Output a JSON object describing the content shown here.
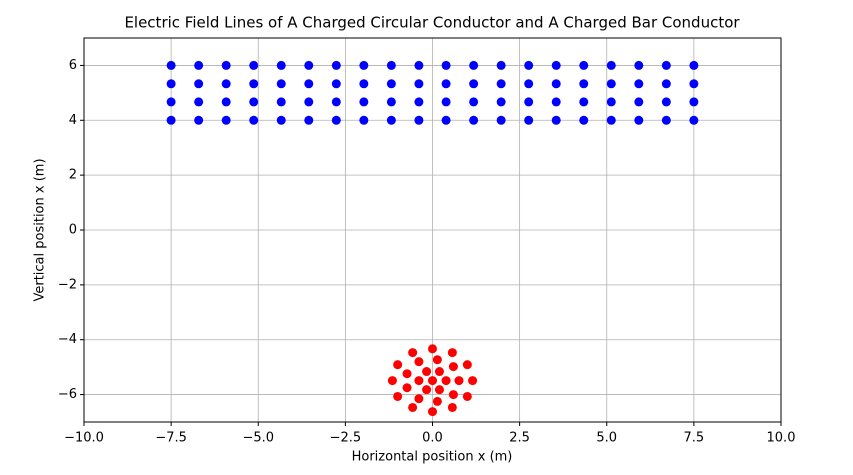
{
  "chart_data": {
    "type": "scatter",
    "title": "Electric Field Lines of A Charged Circular Conductor and A Charged Bar Conductor",
    "xlabel": "Horizontal position x (m)",
    "ylabel": "Vertical position x (m)",
    "xlim": [
      -10,
      10
    ],
    "ylim": [
      -7,
      7
    ],
    "xticks": [
      {
        "value": -10,
        "label": "−10.0"
      },
      {
        "value": -7.5,
        "label": "−7.5"
      },
      {
        "value": -5,
        "label": "−5.0"
      },
      {
        "value": -2.5,
        "label": "−2.5"
      },
      {
        "value": 0,
        "label": "0.0"
      },
      {
        "value": 2.5,
        "label": "2.5"
      },
      {
        "value": 5,
        "label": "5.0"
      },
      {
        "value": 7.5,
        "label": "7.5"
      },
      {
        "value": 10,
        "label": "10.0"
      }
    ],
    "yticks": [
      {
        "value": -6,
        "label": "−6"
      },
      {
        "value": -4,
        "label": "−4"
      },
      {
        "value": -2,
        "label": "−2"
      },
      0,
      2,
      4,
      6
    ],
    "grid": true,
    "series": [
      {
        "color": "#0000ff",
        "x": [
          -7.5,
          -6.71,
          -5.92,
          -5.13,
          -4.34,
          -3.55,
          -2.76,
          -1.97,
          -1.18,
          -0.39,
          0.39,
          1.18,
          1.97,
          2.76,
          3.55,
          4.34,
          5.13,
          5.92,
          6.71,
          7.5,
          -7.5,
          -6.71,
          -5.92,
          -5.13,
          -4.34,
          -3.55,
          -2.76,
          -1.97,
          -1.18,
          -0.39,
          0.39,
          1.18,
          1.97,
          2.76,
          3.55,
          4.34,
          5.13,
          5.92,
          6.71,
          7.5,
          -7.5,
          -6.71,
          -5.92,
          -5.13,
          -4.34,
          -3.55,
          -2.76,
          -1.97,
          -1.18,
          -0.39,
          0.39,
          1.18,
          1.97,
          2.76,
          3.55,
          4.34,
          5.13,
          5.92,
          6.71,
          7.5,
          -7.5,
          -6.71,
          -5.92,
          -5.13,
          -4.34,
          -3.55,
          -2.76,
          -1.97,
          -1.18,
          -0.39,
          0.39,
          1.18,
          1.97,
          2.76,
          3.55,
          4.34,
          5.13,
          5.92,
          6.71,
          7.5
        ],
        "values": [
          4,
          4,
          4,
          4,
          4,
          4,
          4,
          4,
          4,
          4,
          4,
          4,
          4,
          4,
          4,
          4,
          4,
          4,
          4,
          4,
          4.67,
          4.67,
          4.67,
          4.67,
          4.67,
          4.67,
          4.67,
          4.67,
          4.67,
          4.67,
          4.67,
          4.67,
          4.67,
          4.67,
          4.67,
          4.67,
          4.67,
          4.67,
          4.67,
          4.67,
          5.33,
          5.33,
          5.33,
          5.33,
          5.33,
          5.33,
          5.33,
          5.33,
          5.33,
          5.33,
          5.33,
          5.33,
          5.33,
          5.33,
          5.33,
          5.33,
          5.33,
          5.33,
          5.33,
          5.33,
          6,
          6,
          6,
          6,
          6,
          6,
          6,
          6,
          6,
          6,
          6,
          6,
          6,
          6,
          6,
          6,
          6,
          6,
          6,
          6
        ]
      },
      {
        "color": "#ff0000",
        "x": [
          0,
          -0.57,
          0.57,
          0.14,
          -1.0,
          1.0,
          -0.39,
          0.6,
          -0.73,
          0.2,
          -0.17,
          -1.15,
          1.15,
          -0.39,
          0.39,
          0,
          0.76,
          -0.73,
          -0.17,
          0.2,
          -1.0,
          1.0,
          -0.39,
          0.6,
          0.14,
          -0.57,
          0.57,
          0
        ],
        "values": [
          -4.33,
          -4.47,
          -4.47,
          -4.73,
          -4.91,
          -4.91,
          -4.8,
          -4.98,
          -5.24,
          -5.16,
          -5.16,
          -5.49,
          -5.49,
          -5.49,
          -5.49,
          -5.49,
          -5.49,
          -5.75,
          -5.82,
          -5.82,
          -6.07,
          -6.07,
          -6.15,
          -6.0,
          -6.25,
          -6.47,
          -6.47,
          -6.62
        ]
      }
    ]
  }
}
